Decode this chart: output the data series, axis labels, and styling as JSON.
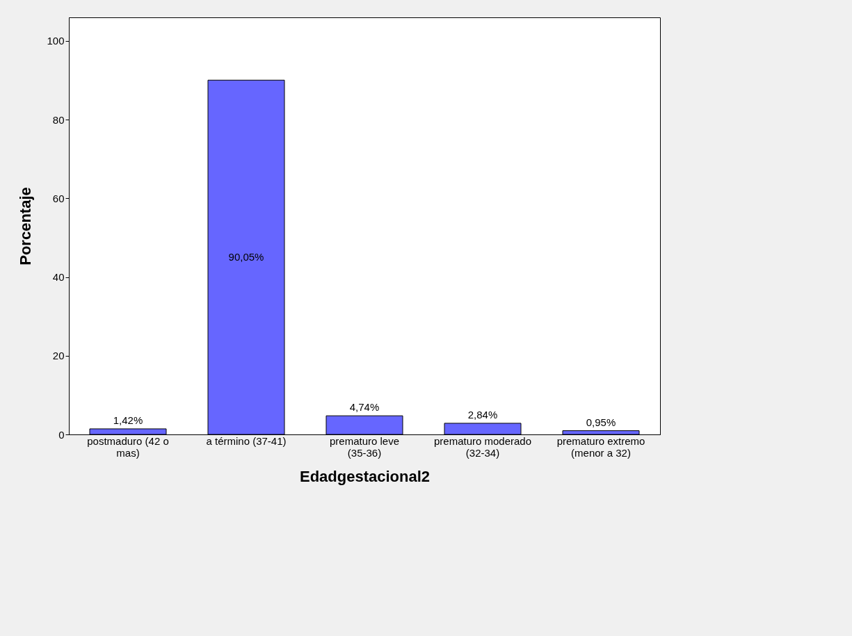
{
  "chart_data": {
    "type": "bar",
    "xlabel": "Edadgestacional2",
    "ylabel": "Porcentaje",
    "categories": [
      "postmaduro (42 o mas)",
      "a término (37-41)",
      "prematuro leve (35-36)",
      "prematuro moderado (32-34)",
      "prematuro extremo (menor a 32)"
    ],
    "values": [
      1.42,
      90.05,
      4.74,
      2.84,
      0.95
    ],
    "value_labels": [
      "1,42%",
      "90,05%",
      "4,74%",
      "2,84%",
      "0,95%"
    ],
    "color": "#6666ff",
    "ylim": [
      0,
      106
    ],
    "yticks": [
      0,
      20,
      40,
      60,
      80,
      100
    ],
    "grid": false
  }
}
